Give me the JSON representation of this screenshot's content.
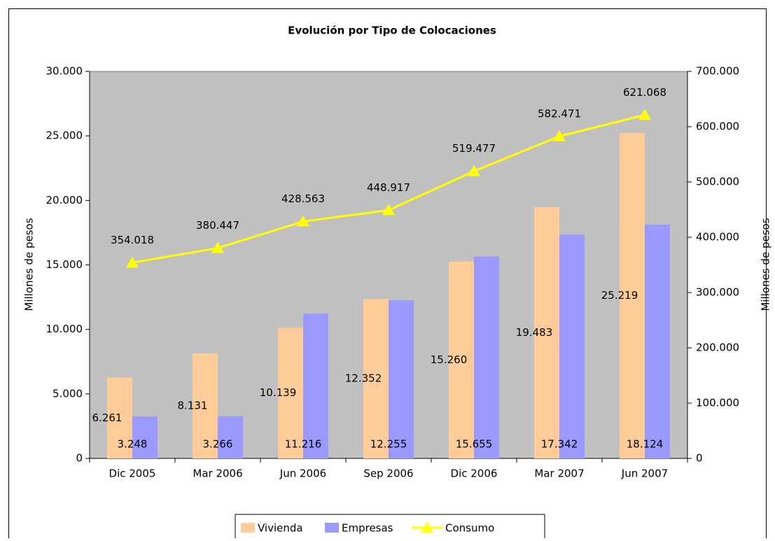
{
  "chart_data": {
    "type": "bar-line",
    "title": "Evolución por Tipo de Colocaciones",
    "ylabel": "Millones de pesos",
    "y2label": "Millones de pesos",
    "categories": [
      "Dic 2005",
      "Mar 2006",
      "Jun 2006",
      "Sep 2006",
      "Dic 2006",
      "Mar 2007",
      "Jun 2007"
    ],
    "series": [
      {
        "name": "Vivienda",
        "type": "bar",
        "color": "#ffcc99",
        "axis": "y",
        "values": [
          6261,
          8131,
          10139,
          12352,
          15260,
          19483,
          25219
        ],
        "value_labels": [
          "6.261",
          "8.131",
          "10.139",
          "12.352",
          "15.260",
          "19.483",
          "25.219"
        ]
      },
      {
        "name": "Empresas",
        "type": "bar",
        "color": "#9999ff",
        "axis": "y",
        "values": [
          3248,
          3266,
          11216,
          12255,
          15655,
          17342,
          18124
        ],
        "value_labels": [
          "3.248",
          "3.266",
          "11.216",
          "12.255",
          "15.655",
          "17.342",
          "18.124"
        ]
      },
      {
        "name": "Consumo",
        "type": "line",
        "color": "#ffff00",
        "axis": "y2",
        "values": [
          354018,
          380447,
          428563,
          448917,
          519477,
          582471,
          621068
        ],
        "value_labels": [
          "354.018",
          "380.447",
          "428.563",
          "448.917",
          "519.477",
          "582.471",
          "621.068"
        ]
      }
    ],
    "ylim": [
      0,
      30000
    ],
    "yticks": [
      0,
      {
        "value": 5000,
        "label": "5.000"
      },
      {
        "value": 10000,
        "label": "10.000"
      },
      {
        "value": 15000,
        "label": "15.000"
      },
      {
        "value": 20000,
        "label": "20.000"
      },
      {
        "value": 25000,
        "label": "25.000"
      },
      {
        "value": 30000,
        "label": "30.000"
      }
    ],
    "y2lim": [
      0,
      700000
    ],
    "y2ticks": [
      0,
      {
        "value": 100000,
        "label": "100.000"
      },
      {
        "value": 200000,
        "label": "200.000"
      },
      {
        "value": 300000,
        "label": "300.000"
      },
      {
        "value": 400000,
        "label": "400.000"
      },
      {
        "value": 500000,
        "label": "500.000"
      },
      {
        "value": 600000,
        "label": "600.000"
      },
      {
        "value": 700000,
        "label": "700.000"
      }
    ],
    "legend": "bottom"
  }
}
